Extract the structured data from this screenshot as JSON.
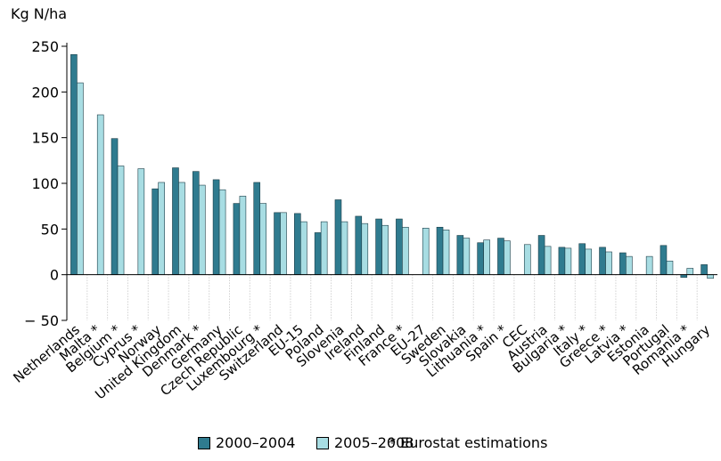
{
  "chart_data": {
    "type": "bar",
    "ylabel": "Kg N/ha",
    "ylim": [
      -50,
      250
    ],
    "yticks": [
      -50,
      0,
      50,
      100,
      150,
      200,
      250
    ],
    "ytick_labels": [
      "− 50",
      "0",
      "50",
      "100",
      "150",
      "200",
      "250"
    ],
    "grid": false,
    "legend_position": "bottom",
    "categories": [
      "Netherlands",
      "Malta *",
      "Belgium *",
      "Cyprus *",
      "Norway",
      "United Kingdom",
      "Denmark *",
      "Germany",
      "Czech Republic",
      "Luxembourg *",
      "Switzerland",
      "EU-15",
      "Poland",
      "Slovenia",
      "Ireland",
      "Finland",
      "France *",
      "EU-27",
      "Sweden",
      "Slovakia",
      "Lithuania *",
      "Spain *",
      "CEC",
      "Austria",
      "Bulgaria *",
      "Italy *",
      "Greece *",
      "Latvia *",
      "Estonia",
      "Portugal",
      "Romania *",
      "Hungary"
    ],
    "series": [
      {
        "name": "2000–2004",
        "color": "#2f7b8f",
        "values": [
          241,
          null,
          149,
          null,
          94,
          117,
          113,
          104,
          78,
          101,
          68,
          67,
          46,
          82,
          64,
          61,
          61,
          null,
          52,
          43,
          35,
          40,
          null,
          43,
          30,
          34,
          30,
          24,
          null,
          32,
          -3,
          11
        ]
      },
      {
        "name": "2005–2008",
        "color": "#a8dde3",
        "values": [
          210,
          175,
          119,
          116,
          101,
          101,
          98,
          93,
          86,
          78,
          68,
          58,
          58,
          58,
          56,
          54,
          52,
          51,
          49,
          40,
          38,
          37,
          33,
          31,
          29,
          28,
          25,
          20,
          20,
          15,
          7,
          -4
        ]
      }
    ],
    "note": "* Eurostat estimations"
  }
}
